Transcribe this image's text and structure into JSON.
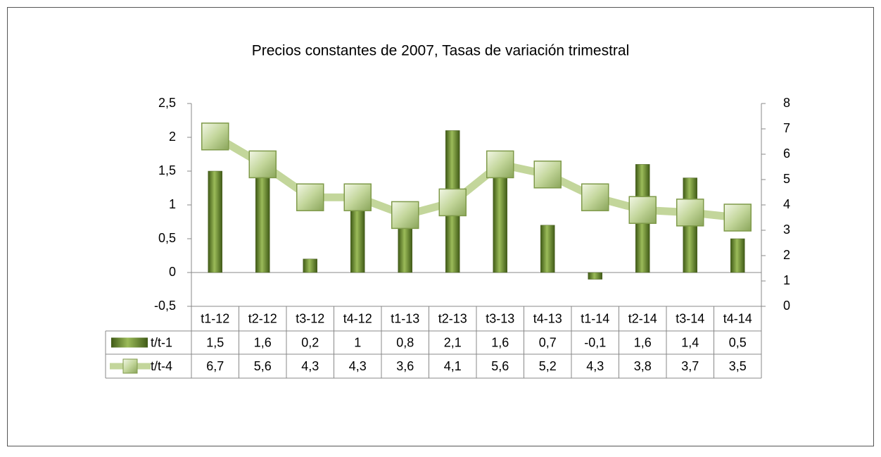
{
  "chart_data": {
    "type": "bar-line",
    "title": "Precios constantes de 2007, Tasas de variación trimestral",
    "categories": [
      "t1-12",
      "t2-12",
      "t3-12",
      "t4-12",
      "t1-13",
      "t2-13",
      "t3-13",
      "t4-13",
      "t1-14",
      "t2-14",
      "t3-14",
      "t4-14"
    ],
    "series": [
      {
        "name": "t/t-1",
        "type": "bar",
        "color": "#77933c",
        "axis": "y",
        "values": [
          1.5,
          1.6,
          0.2,
          1,
          0.8,
          2.1,
          1.6,
          0.7,
          -0.1,
          1.6,
          1.4,
          0.5
        ],
        "value_labels": [
          "1,5",
          "1,6",
          "0,2",
          "1",
          "0,8",
          "2,1",
          "1,6",
          "0,7",
          "-0,1",
          "1,6",
          "1,4",
          "0,5"
        ]
      },
      {
        "name": "t/t-4",
        "type": "line",
        "color": "#c3d69b",
        "axis": "y2",
        "values": [
          6.7,
          5.6,
          4.3,
          4.3,
          3.6,
          4.1,
          5.6,
          5.2,
          4.3,
          3.8,
          3.7,
          3.5
        ],
        "value_labels": [
          "6,7",
          "5,6",
          "4,3",
          "4,3",
          "3,6",
          "4,1",
          "5,6",
          "5,2",
          "4,3",
          "3,8",
          "3,7",
          "3,5"
        ]
      }
    ],
    "ylim": [
      -0.5,
      2.5
    ],
    "yticks": [
      {
        "value": -0.5,
        "label": "-0,5"
      },
      0,
      {
        "value": 0.5,
        "label": "0,5"
      },
      1,
      {
        "value": 1.5,
        "label": "1,5"
      },
      2,
      {
        "value": 2.5,
        "label": "2,5"
      }
    ],
    "y2lim": [
      0,
      8
    ],
    "y2ticks": [
      0,
      1,
      2,
      3,
      4,
      5,
      6,
      7,
      8
    ],
    "data_table": true
  }
}
